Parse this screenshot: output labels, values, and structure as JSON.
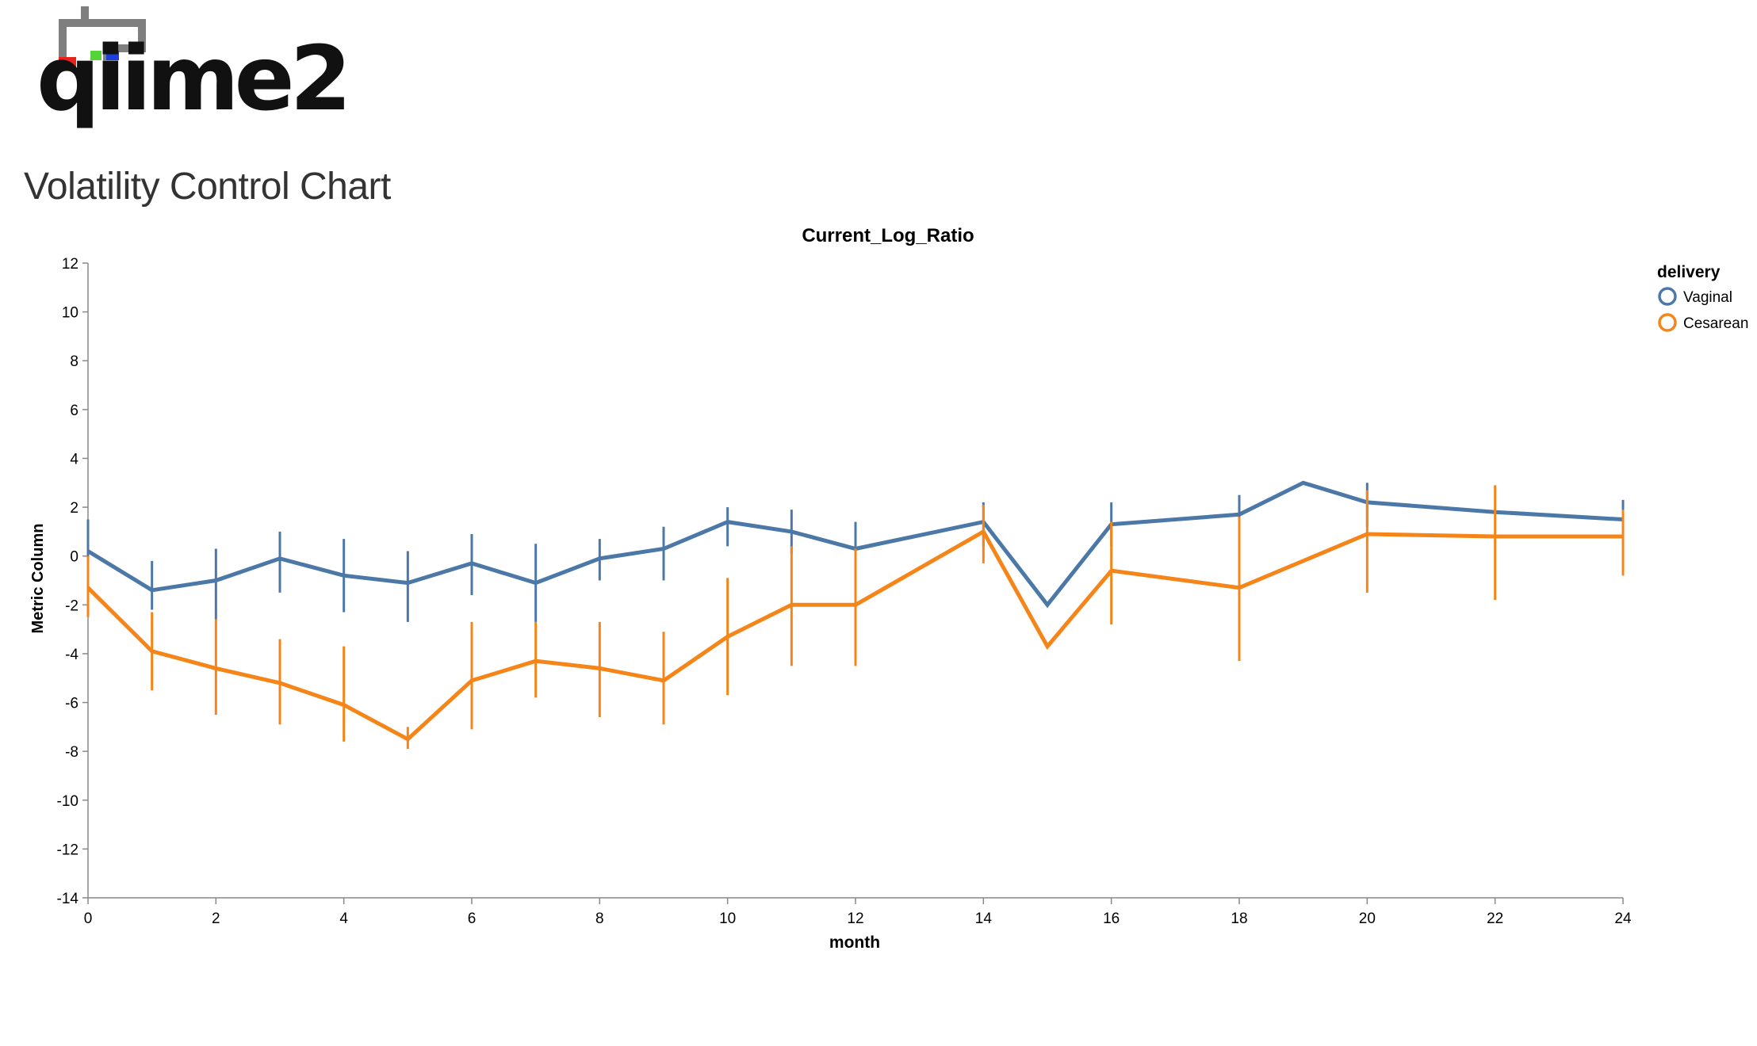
{
  "logo": {
    "text": "qiime2"
  },
  "page": {
    "title": "Volatility Control Chart"
  },
  "chart_data": {
    "type": "line",
    "title": "Current_Log_Ratio",
    "xlabel": "month",
    "ylabel": "Metric Column",
    "xlim": [
      0,
      24
    ],
    "ylim": [
      -14,
      12
    ],
    "x_ticks": [
      0,
      2,
      4,
      6,
      8,
      10,
      12,
      14,
      16,
      18,
      20,
      22,
      24
    ],
    "y_ticks": [
      12,
      10,
      8,
      6,
      4,
      2,
      0,
      -2,
      -4,
      -6,
      -8,
      -10,
      -12,
      -14
    ],
    "grid": false,
    "legend": {
      "title": "delivery",
      "position": "top-right"
    },
    "series": [
      {
        "name": "Vaginal",
        "color": "#4c78a8",
        "x": [
          0,
          1,
          2,
          3,
          4,
          5,
          6,
          7,
          8,
          9,
          10,
          11,
          12,
          14,
          15,
          16,
          18,
          19,
          20,
          22,
          24
        ],
        "y": [
          0.2,
          -1.4,
          -1.0,
          -0.1,
          -0.8,
          -1.1,
          -0.3,
          -1.1,
          -0.1,
          0.3,
          1.4,
          1.0,
          0.3,
          1.4,
          -2.0,
          1.3,
          1.7,
          3.0,
          2.2,
          1.8,
          1.5
        ],
        "err_low": [
          -1.3,
          -2.2,
          -2.6,
          -1.5,
          -2.3,
          -2.7,
          -1.6,
          -2.7,
          -1.0,
          -1.0,
          0.4,
          0.1,
          -0.6,
          0.4,
          null,
          0.4,
          0.8,
          null,
          1.2,
          null,
          0.7
        ],
        "err_high": [
          1.5,
          -0.2,
          0.3,
          1.0,
          0.7,
          0.2,
          0.9,
          0.5,
          0.7,
          1.2,
          2.0,
          1.9,
          1.4,
          2.2,
          null,
          2.2,
          2.5,
          null,
          3.0,
          null,
          2.3
        ]
      },
      {
        "name": "Cesarean",
        "color": "#f58518",
        "x": [
          0,
          1,
          2,
          3,
          4,
          5,
          6,
          7,
          8,
          9,
          10,
          11,
          12,
          14,
          15,
          16,
          18,
          20,
          22,
          24
        ],
        "y": [
          -1.3,
          -3.9,
          -4.6,
          -5.2,
          -6.1,
          -7.5,
          -5.1,
          -4.3,
          -4.6,
          -5.1,
          -3.3,
          -2.0,
          -2.0,
          1.0,
          -3.7,
          -0.6,
          -1.3,
          0.9,
          0.8,
          0.8
        ],
        "err_low": [
          -2.5,
          -5.5,
          -6.5,
          -6.9,
          -7.6,
          -7.9,
          -7.1,
          -5.8,
          -6.6,
          -6.9,
          -5.7,
          -4.5,
          -4.5,
          -0.3,
          null,
          -2.8,
          -4.3,
          -1.5,
          -1.8,
          -0.8
        ],
        "err_high": [
          0.0,
          -2.3,
          -2.6,
          -3.4,
          -3.7,
          -7.0,
          -2.7,
          -2.7,
          -2.7,
          -3.1,
          -0.9,
          0.4,
          0.3,
          2.1,
          null,
          1.4,
          1.6,
          2.7,
          2.9,
          1.9
        ]
      }
    ]
  }
}
